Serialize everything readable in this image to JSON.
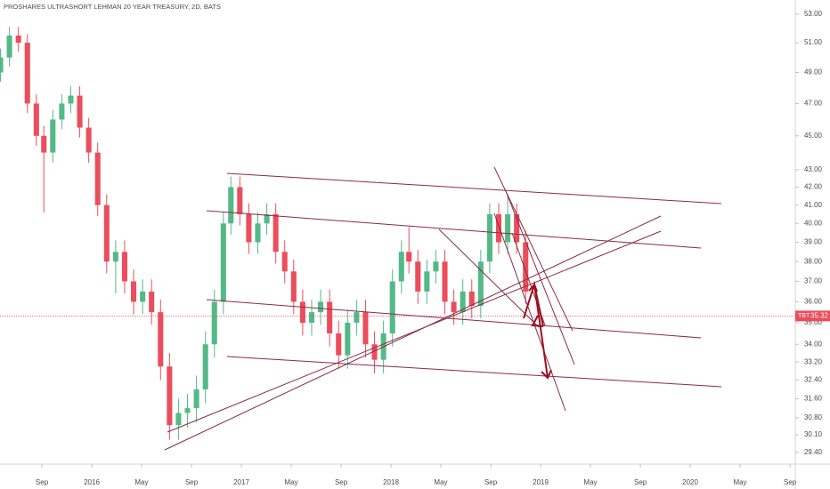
{
  "chart_data": {
    "type": "candlestick",
    "title": "PROSHARES ULTRASHORT LEHMAN 20 YEAR TREASURY, 2D, BATS",
    "log_scale": true,
    "up_color": "#53b987",
    "down_color": "#eb4d5c",
    "xlim": [
      2015.387,
      2020.702
    ],
    "ylim": [
      28.94,
      54.02
    ],
    "xticks": [
      {
        "value": 2015.667,
        "label": "Sep"
      },
      {
        "value": 2016.0,
        "label": "2016"
      },
      {
        "value": 2016.333,
        "label": "May"
      },
      {
        "value": 2016.667,
        "label": "Sep"
      },
      {
        "value": 2017.0,
        "label": "2017"
      },
      {
        "value": 2017.333,
        "label": "May"
      },
      {
        "value": 2017.667,
        "label": "Sep"
      },
      {
        "value": 2018.0,
        "label": "2018"
      },
      {
        "value": 2018.333,
        "label": "May"
      },
      {
        "value": 2018.667,
        "label": "Sep"
      },
      {
        "value": 2019.0,
        "label": "2019"
      },
      {
        "value": 2019.333,
        "label": "May"
      },
      {
        "value": 2019.667,
        "label": "Sep"
      },
      {
        "value": 2020.0,
        "label": "2020"
      },
      {
        "value": 2020.333,
        "label": "May"
      },
      {
        "value": 2020.667,
        "label": "Sep"
      }
    ],
    "yticks": [
      {
        "value": 53,
        "label": "53.00"
      },
      {
        "value": 51,
        "label": "51.00"
      },
      {
        "value": 49,
        "label": "49.00"
      },
      {
        "value": 47,
        "label": "47.00"
      },
      {
        "value": 45,
        "label": "45.00"
      },
      {
        "value": 43,
        "label": "43.00"
      },
      {
        "value": 42,
        "label": "42.00"
      },
      {
        "value": 41,
        "label": "41.00"
      },
      {
        "value": 40,
        "label": "40.00"
      },
      {
        "value": 39,
        "label": "39.00"
      },
      {
        "value": 38,
        "label": "38.00"
      },
      {
        "value": 37,
        "label": "37.00"
      },
      {
        "value": 36,
        "label": "36.00"
      },
      {
        "value": 35,
        "label": "35.00"
      },
      {
        "value": 34,
        "label": "34.00"
      },
      {
        "value": 33.2,
        "label": "33.20"
      },
      {
        "value": 32.4,
        "label": "32.40"
      },
      {
        "value": 31.6,
        "label": "31.60"
      },
      {
        "value": 30.8,
        "label": "30.80"
      },
      {
        "value": 30.1,
        "label": "30.10"
      },
      {
        "value": 29.4,
        "label": "29.40"
      }
    ],
    "last_price": {
      "symbol": "TBT",
      "value": 35.32,
      "color": "#eb4d5c"
    },
    "x": [
      2015.39,
      2015.45,
      2015.51,
      2015.57,
      2015.63,
      2015.68,
      2015.74,
      2015.8,
      2015.86,
      2015.92,
      2015.98,
      2016.04,
      2016.1,
      2016.16,
      2016.22,
      2016.28,
      2016.34,
      2016.4,
      2016.46,
      2016.52,
      2016.58,
      2016.64,
      2016.7,
      2016.76,
      2016.82,
      2016.88,
      2016.93,
      2016.99,
      2017.05,
      2017.11,
      2017.17,
      2017.23,
      2017.29,
      2017.35,
      2017.41,
      2017.47,
      2017.53,
      2017.59,
      2017.65,
      2017.71,
      2017.77,
      2017.83,
      2017.89,
      2017.95,
      2018.01,
      2018.07,
      2018.12,
      2018.18,
      2018.24,
      2018.3,
      2018.36,
      2018.42,
      2018.48,
      2018.54,
      2018.6,
      2018.66,
      2018.72,
      2018.78,
      2018.84,
      2018.9
    ],
    "open": [
      49,
      50,
      51.5,
      51,
      47,
      45,
      44,
      46,
      47,
      47.5,
      45.5,
      44,
      41,
      38,
      38.5,
      37,
      36,
      36.5,
      35.5,
      33,
      30.5,
      31,
      31.2,
      32,
      34,
      36,
      40,
      42,
      40.5,
      39,
      40,
      40.5,
      38.5,
      37.5,
      36,
      35,
      35.5,
      36,
      34.5,
      33.5,
      35,
      35.5,
      34,
      33.3,
      34.5,
      37,
      38.5,
      38,
      36.5,
      37.5,
      38,
      36,
      35.5,
      36.5,
      35.8,
      38,
      40.5,
      39,
      40.5,
      39
    ],
    "high": [
      50.6,
      52.1,
      52.1,
      51.6,
      47.6,
      45.6,
      46.6,
      47.6,
      48.1,
      48.1,
      46.1,
      44.6,
      41.6,
      39.1,
      39.1,
      37.6,
      37.1,
      37.1,
      36.1,
      33.6,
      31.6,
      31.8,
      32.6,
      34.6,
      36.6,
      40.6,
      42.6,
      42.6,
      41.1,
      40.6,
      41.1,
      41.1,
      39.1,
      38.1,
      36.6,
      36.1,
      36.6,
      36.6,
      35.1,
      35.6,
      36.1,
      36.1,
      34.6,
      35.1,
      37.6,
      39.1,
      39.8,
      38.6,
      38.1,
      38.6,
      38.6,
      36.6,
      37.1,
      37.1,
      38.6,
      41.1,
      41.1,
      41.6,
      41.1,
      39.6
    ],
    "low": [
      48.4,
      49.4,
      50.4,
      46.4,
      44.4,
      40.6,
      43.4,
      45.4,
      46.4,
      44.9,
      43.4,
      40.4,
      37.4,
      36.4,
      36.4,
      35.4,
      35.4,
      34.9,
      32.4,
      29.9,
      29.9,
      30.4,
      30.6,
      31.4,
      33.4,
      35.4,
      39.4,
      39.9,
      38.4,
      38.4,
      39.4,
      37.9,
      36.9,
      35.4,
      34.4,
      34.4,
      34.9,
      33.9,
      32.9,
      32.9,
      34.4,
      33.4,
      32.7,
      32.7,
      33.9,
      36.4,
      37.4,
      35.9,
      35.9,
      36.9,
      35.4,
      34.9,
      34.9,
      35.2,
      35.2,
      37.4,
      38.4,
      38.4,
      38.4,
      35.9
    ],
    "close": [
      50,
      51.5,
      51,
      47,
      45,
      44,
      46,
      47,
      47.5,
      45.5,
      44,
      41,
      38,
      38.5,
      37,
      36,
      36.5,
      35.5,
      33,
      30.5,
      31,
      31.2,
      32,
      34,
      36,
      40,
      42,
      40.5,
      39,
      40,
      40.5,
      38.5,
      37.5,
      36,
      35,
      35.5,
      36,
      34.5,
      33.5,
      35,
      35.5,
      34,
      33.3,
      34.5,
      37,
      38.5,
      38,
      36.5,
      37.5,
      38,
      36,
      35.5,
      36.5,
      35.8,
      38,
      40.5,
      39,
      40.5,
      39,
      36.5
    ]
  }
}
